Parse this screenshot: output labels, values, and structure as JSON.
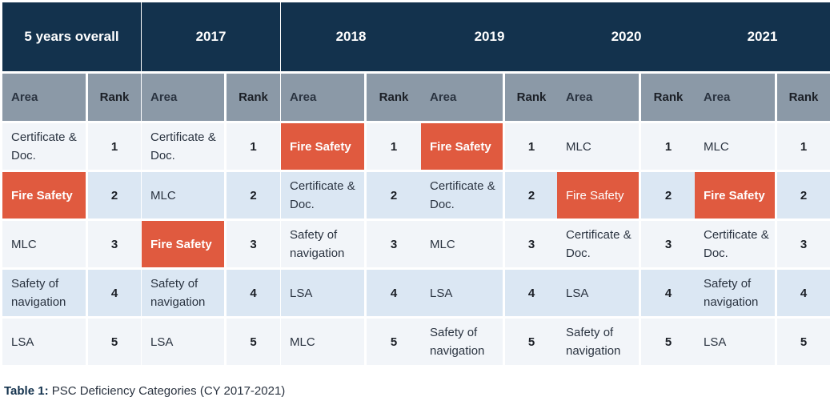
{
  "colors": {
    "header_bg": "#13324d",
    "subheader_bg": "#8b99a7",
    "highlight": "#e05a3f",
    "row_light": "#f2f5f9",
    "row_blue": "#dbe7f3"
  },
  "table": {
    "area_label": "Area",
    "rank_label": "Rank",
    "groups": [
      {
        "title": "5 years overall",
        "rows": [
          {
            "area": "Certificate & Doc.",
            "rank": "1"
          },
          {
            "area": "Fire Safety",
            "rank": "2",
            "highlight": true
          },
          {
            "area": "MLC",
            "rank": "3"
          },
          {
            "area": "Safety of navigation",
            "rank": "4"
          },
          {
            "area": "LSA",
            "rank": "5"
          }
        ]
      },
      {
        "title": "2017",
        "rows": [
          {
            "area": "Certificate & Doc.",
            "rank": "1"
          },
          {
            "area": "MLC",
            "rank": "2"
          },
          {
            "area": "Fire Safety",
            "rank": "3",
            "highlight": true
          },
          {
            "area": "Safety of navigation",
            "rank": "4"
          },
          {
            "area": "LSA",
            "rank": "5"
          }
        ]
      },
      {
        "title": "2018",
        "rows": [
          {
            "area": "Fire Safety",
            "rank": "1",
            "highlight": true
          },
          {
            "area": "Certificate & Doc.",
            "rank": "2"
          },
          {
            "area": "Safety of navigation",
            "rank": "3"
          },
          {
            "area": "LSA",
            "rank": "4"
          },
          {
            "area": "MLC",
            "rank": "5"
          }
        ]
      },
      {
        "title": "2019",
        "rows": [
          {
            "area": "Fire Safety",
            "rank": "1",
            "highlight": true
          },
          {
            "area": "Certificate & Doc.",
            "rank": "2"
          },
          {
            "area": "MLC",
            "rank": "3"
          },
          {
            "area": "LSA",
            "rank": "4"
          },
          {
            "area": "Safety of navigation",
            "rank": "5"
          }
        ]
      },
      {
        "title": "2020",
        "rows": [
          {
            "area": "MLC",
            "rank": "1"
          },
          {
            "area": "Fire Safety",
            "rank": "2",
            "highlight": true,
            "muted": true
          },
          {
            "area": "Certificate & Doc.",
            "rank": "3"
          },
          {
            "area": "LSA",
            "rank": "4"
          },
          {
            "area": "Safety of navigation",
            "rank": "5"
          }
        ]
      },
      {
        "title": "2021",
        "rows": [
          {
            "area": "MLC",
            "rank": "1"
          },
          {
            "area": "Fire Safety",
            "rank": "2",
            "highlight": true
          },
          {
            "area": "Certificate & Doc.",
            "rank": "3"
          },
          {
            "area": "Safety of navigation",
            "rank": "4"
          },
          {
            "area": "LSA",
            "rank": "5"
          }
        ]
      }
    ]
  },
  "caption": {
    "label": "Table 1:",
    "text": " PSC Deficiency Categories (CY 2017-2021)"
  }
}
